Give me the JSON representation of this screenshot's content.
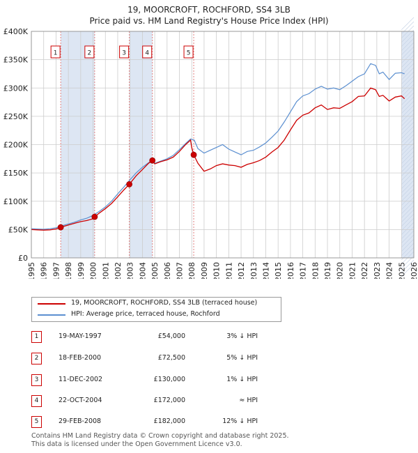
{
  "title_line1": "19, MOORCROFT, ROCHFORD, SS4 3LB",
  "title_line2": "Price paid vs. HM Land Registry's House Price Index (HPI)",
  "colors": {
    "property": "#cc0000",
    "hpi": "#5b8fd0",
    "shade": "#dde6f3",
    "grid": "#cccccc"
  },
  "legend": {
    "property_label": "19, MOORCROFT, ROCHFORD, SS4 3LB (terraced house)",
    "hpi_label": "HPI: Average price, terraced house, Rochford"
  },
  "transactions": [
    {
      "num": "1",
      "date": "19-MAY-1997",
      "price": "£54,000",
      "hpi_diff": "3% ↓ HPI"
    },
    {
      "num": "2",
      "date": "18-FEB-2000",
      "price": "£72,500",
      "hpi_diff": "5% ↓ HPI"
    },
    {
      "num": "3",
      "date": "11-DEC-2002",
      "price": "£130,000",
      "hpi_diff": "1% ↓ HPI"
    },
    {
      "num": "4",
      "date": "22-OCT-2004",
      "price": "£172,000",
      "hpi_diff": "≈ HPI"
    },
    {
      "num": "5",
      "date": "29-FEB-2008",
      "price": "£182,000",
      "hpi_diff": "12% ↓ HPI"
    }
  ],
  "footer_line1": "Contains HM Land Registry data © Crown copyright and database right 2025.",
  "footer_line2": "This data is licensed under the Open Government Licence v3.0.",
  "chart_data": {
    "type": "line",
    "x_range": [
      1995,
      2026
    ],
    "ylim": [
      0,
      400000
    ],
    "y_ticks": [
      0,
      50000,
      100000,
      150000,
      200000,
      250000,
      300000,
      350000,
      400000
    ],
    "y_tick_labels": [
      "£0",
      "£50K",
      "£100K",
      "£150K",
      "£200K",
      "£250K",
      "£300K",
      "£350K",
      "£400K"
    ],
    "x_ticks": [
      1995,
      1996,
      1997,
      1998,
      1999,
      2000,
      2001,
      2002,
      2003,
      2004,
      2005,
      2006,
      2007,
      2008,
      2009,
      2010,
      2011,
      2012,
      2013,
      2014,
      2015,
      2016,
      2017,
      2018,
      2019,
      2020,
      2021,
      2022,
      2023,
      2024,
      2025,
      2026
    ],
    "grid": true,
    "legend_position": "below",
    "sales": [
      {
        "num": "1",
        "x": 1997.38,
        "y": 54000
      },
      {
        "num": "2",
        "x": 2000.13,
        "y": 72500
      },
      {
        "num": "3",
        "x": 2002.94,
        "y": 130000
      },
      {
        "num": "4",
        "x": 2004.81,
        "y": 172000
      },
      {
        "num": "5",
        "x": 2008.16,
        "y": 182000
      }
    ],
    "shaded_bands": [
      [
        1997.38,
        2000.13
      ],
      [
        2002.94,
        2004.81
      ],
      [
        2025.0,
        2026.0
      ]
    ],
    "series": [
      {
        "name": "19, MOORCROFT, ROCHFORD, SS4 3LB (terraced house)",
        "x": [
          1995.0,
          1995.5,
          1996.0,
          1996.5,
          1997.0,
          1997.38,
          1998.0,
          1998.5,
          1999.0,
          1999.5,
          2000.0,
          2000.13,
          2000.5,
          2001.0,
          2001.5,
          2002.0,
          2002.5,
          2002.94,
          2003.5,
          2004.0,
          2004.5,
          2004.81,
          2005.0,
          2005.5,
          2006.0,
          2006.5,
          2007.0,
          2007.5,
          2007.9,
          2008.0,
          2008.16,
          2008.5,
          2009.0,
          2009.5,
          2010.0,
          2010.5,
          2011.0,
          2011.5,
          2012.0,
          2012.5,
          2013.0,
          2013.5,
          2014.0,
          2014.5,
          2015.0,
          2015.5,
          2016.0,
          2016.5,
          2017.0,
          2017.5,
          2018.0,
          2018.5,
          2019.0,
          2019.5,
          2020.0,
          2020.5,
          2021.0,
          2021.5,
          2022.0,
          2022.5,
          2022.9,
          2023.2,
          2023.5,
          2024.0,
          2024.5,
          2025.0,
          2025.25
        ],
        "values": [
          50000,
          49500,
          49000,
          49500,
          51000,
          54000,
          58000,
          61000,
          64000,
          66000,
          69000,
          72500,
          79000,
          87000,
          96000,
          108000,
          120000,
          130000,
          145000,
          156000,
          167000,
          172000,
          166000,
          170000,
          173000,
          178000,
          188000,
          200000,
          208000,
          195000,
          182000,
          167000,
          153000,
          157000,
          163000,
          166000,
          164000,
          163000,
          160000,
          165000,
          168000,
          172000,
          178000,
          187000,
          195000,
          208000,
          226000,
          243000,
          252000,
          256000,
          265000,
          270000,
          262000,
          265000,
          264000,
          270000,
          276000,
          285000,
          286000,
          300000,
          297000,
          285000,
          287000,
          277000,
          284000,
          286000,
          281000
        ]
      },
      {
        "name": "HPI: Average price, terraced house, Rochford",
        "x": [
          1995.0,
          1995.5,
          1996.0,
          1996.5,
          1997.0,
          1997.38,
          1998.0,
          1998.5,
          1999.0,
          1999.5,
          2000.0,
          2000.5,
          2001.0,
          2001.5,
          2002.0,
          2002.5,
          2003.0,
          2003.5,
          2004.0,
          2004.5,
          2004.81,
          2005.0,
          2005.5,
          2006.0,
          2006.5,
          2007.0,
          2007.5,
          2007.9,
          2008.2,
          2008.5,
          2009.0,
          2009.5,
          2010.0,
          2010.5,
          2011.0,
          2011.5,
          2012.0,
          2012.5,
          2013.0,
          2013.5,
          2014.0,
          2014.5,
          2015.0,
          2015.5,
          2016.0,
          2016.5,
          2017.0,
          2017.5,
          2018.0,
          2018.5,
          2019.0,
          2019.5,
          2020.0,
          2020.5,
          2021.0,
          2021.5,
          2022.0,
          2022.5,
          2022.9,
          2023.2,
          2023.5,
          2024.0,
          2024.5,
          2025.0,
          2025.25
        ],
        "values": [
          51500,
          51000,
          50500,
          51500,
          53000,
          56000,
          60000,
          63000,
          67000,
          70000,
          75000,
          82000,
          90000,
          100000,
          113000,
          125000,
          138000,
          150000,
          160000,
          168000,
          172000,
          167000,
          171000,
          175000,
          181000,
          191000,
          202000,
          210000,
          208000,
          193000,
          185000,
          190000,
          195000,
          200000,
          192000,
          187000,
          182000,
          188000,
          190000,
          196000,
          203000,
          213000,
          224000,
          240000,
          258000,
          276000,
          286000,
          290000,
          298000,
          303000,
          298000,
          300000,
          297000,
          304000,
          312000,
          320000,
          325000,
          343000,
          340000,
          325000,
          328000,
          315000,
          326000,
          327000,
          325000
        ]
      }
    ]
  }
}
